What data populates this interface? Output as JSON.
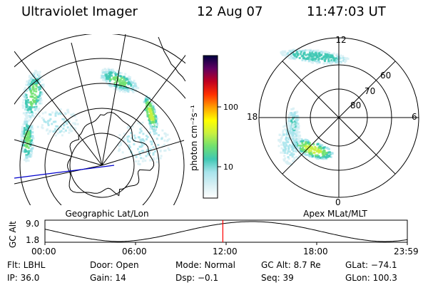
{
  "header": {
    "title": "Ultraviolet Imager",
    "date": "12 Aug 07",
    "time": "11:47:03 UT"
  },
  "colors": {
    "background": "#ffffff",
    "foreground": "#000000",
    "coastline": "#000000",
    "terminator_line": "#0000cc",
    "time_marker": "#ff0000",
    "aurora_ramp": [
      "#ffffff",
      "#d8f0f4",
      "#a8e4ec",
      "#40c8b4",
      "#70e070",
      "#c8f040",
      "#ffff00",
      "#ffa000",
      "#ff3000",
      "#c00020",
      "#600060",
      "#000040"
    ]
  },
  "geo_map": {
    "label": "Geographic Lat/Lon"
  },
  "colorbar": {
    "unit_label": "photon cm⁻²s⁻¹",
    "tick_labels": [
      "100",
      "10"
    ],
    "tick_values": [
      100,
      10
    ],
    "scale": "log"
  },
  "polar_plot": {
    "label": "Apex MLat/MLT",
    "mlt_labels": {
      "top": "12",
      "left": "18",
      "right": "6",
      "bottom": "0"
    },
    "lat_labels": [
      "60",
      "70",
      "80"
    ],
    "lat_values": [
      60,
      70,
      80
    ]
  },
  "orbit_plot": {
    "ylabel": "GC Alt",
    "y_tick_labels": [
      "9.0",
      "1.8"
    ],
    "x_tick_labels": [
      "00:00",
      "06:00",
      "12:00",
      "18:00",
      "23:59"
    ],
    "marker_time": "11:47"
  },
  "footer": {
    "rows": [
      [
        "Flt: LBHL",
        "Door: Open",
        "Mode: Normal",
        "GC Alt: 8.7 Re",
        "GLat: −74.1"
      ],
      [
        "IP: 36.0",
        "Gain: 14",
        "Dsp:    −0.1",
        "Seq: 39",
        "GLon: 100.3"
      ]
    ]
  }
}
